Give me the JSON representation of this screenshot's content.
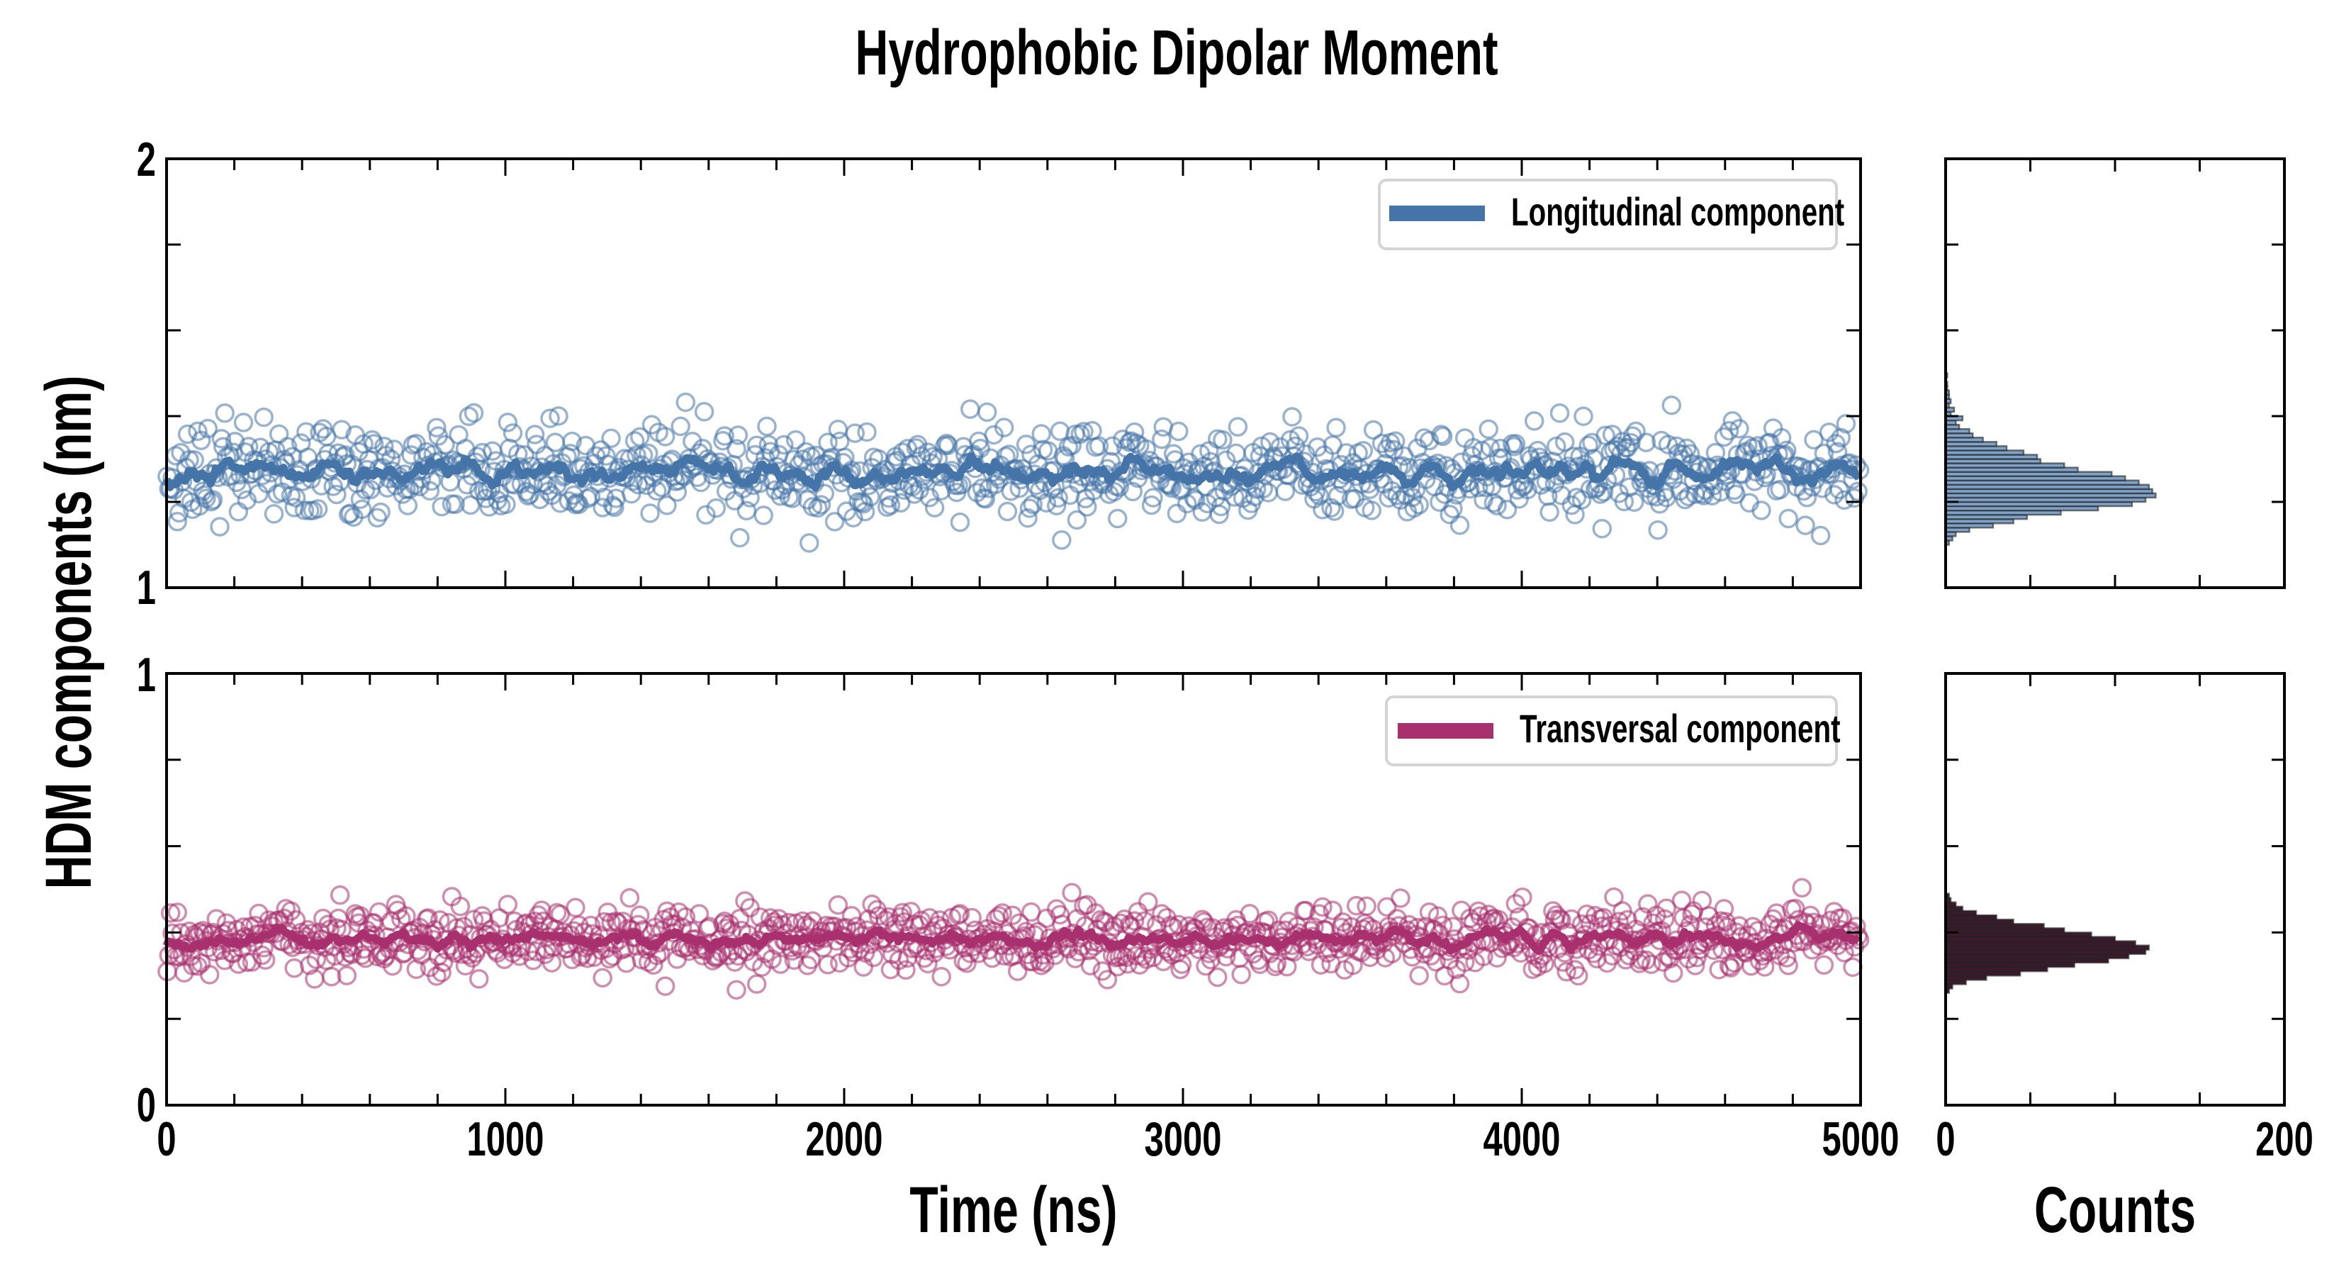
{
  "chart_data": [
    {
      "type": "scatter",
      "title": "Hydrophobic Dipolar Moment",
      "xlabel": "Time (ns)",
      "ylabel": "HDM components (nm)",
      "xlim": [
        0,
        5000
      ],
      "ylim": [
        1,
        2
      ],
      "x_ticks": [
        "0",
        "1000",
        "2000",
        "3000",
        "4000",
        "5000"
      ],
      "y_ticks": [
        "1",
        "2"
      ],
      "legend": {
        "label": "Longitudinal component",
        "placement": "top-right"
      },
      "series": {
        "name": "Longitudinal component",
        "n_points": 1000,
        "x_step": 5,
        "mean": 1.27,
        "std": 0.055,
        "running_average_window": 5,
        "seed": 17
      },
      "color": "#4575a8"
    },
    {
      "type": "scatter",
      "xlim": [
        0,
        5000
      ],
      "ylim": [
        0,
        1
      ],
      "y_ticks": [
        "0",
        "1"
      ],
      "legend": {
        "label": "Transversal component",
        "placement": "top-right"
      },
      "series": {
        "name": "Transversal component",
        "n_points": 1000,
        "x_step": 5,
        "mean": 0.385,
        "std": 0.04,
        "running_average_window": 5,
        "seed": 91
      },
      "color": "#a8306e"
    },
    {
      "type": "bar",
      "orientation": "horizontal",
      "xlabel": "Counts",
      "xlim": [
        0,
        200
      ],
      "ylim": [
        1,
        2
      ],
      "x_ticks": [
        "0",
        "200"
      ],
      "bin_start": 1.1,
      "bin_width": 0.01,
      "counts": [
        2,
        4,
        6,
        14,
        28,
        40,
        48,
        68,
        90,
        110,
        118,
        124,
        122,
        120,
        114,
        106,
        98,
        78,
        70,
        56,
        54,
        46,
        36,
        30,
        22,
        16,
        14,
        8,
        6,
        10,
        3,
        5,
        2,
        3,
        2,
        2,
        1,
        1,
        0,
        1
      ],
      "color": "#7fa3c9"
    },
    {
      "type": "bar",
      "orientation": "horizontal",
      "xlabel": "Counts",
      "xlim": [
        0,
        200
      ],
      "ylim": [
        0,
        1
      ],
      "bin_start": 0.26,
      "bin_width": 0.01,
      "counts": [
        2,
        4,
        12,
        24,
        44,
        60,
        76,
        96,
        108,
        118,
        120,
        112,
        100,
        86,
        70,
        58,
        40,
        30,
        18,
        10,
        6,
        3,
        2
      ],
      "color": "#3b1a2c"
    }
  ]
}
